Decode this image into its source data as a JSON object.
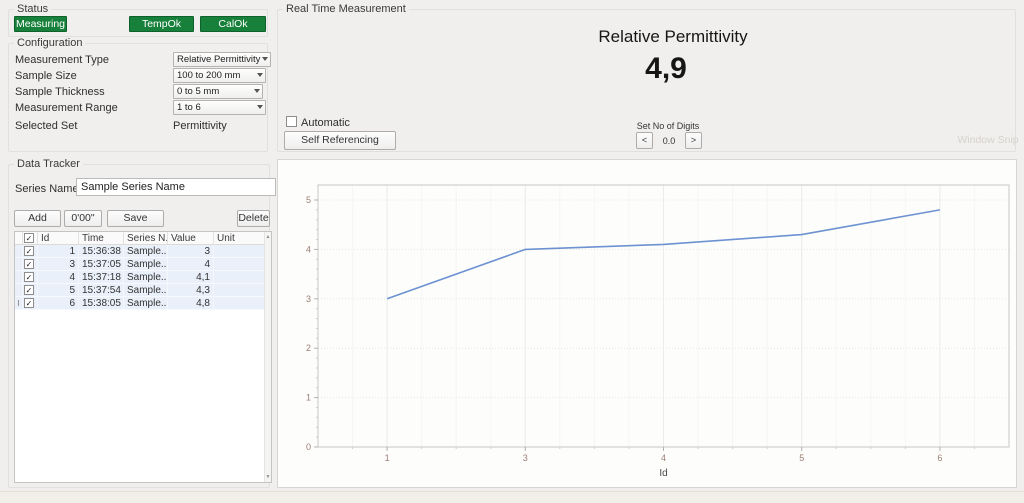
{
  "status": {
    "title": "Status",
    "buttons": [
      {
        "label": "Measuring"
      },
      {
        "label": "TempOk"
      },
      {
        "label": "CalOk"
      }
    ],
    "green": "#17803a"
  },
  "configuration": {
    "title": "Configuration",
    "fields": [
      {
        "label": "Measurement Type",
        "value": "Relative Permittivity",
        "control": "select"
      },
      {
        "label": "Sample Size",
        "value": "100 to 200 mm",
        "control": "select"
      },
      {
        "label": "Sample Thickness",
        "value": "0 to 5 mm",
        "control": "select"
      },
      {
        "label": "Measurement Range",
        "value": "1 to 6",
        "control": "select"
      },
      {
        "label": "Selected Set",
        "value": "Permittivity",
        "control": "text"
      }
    ]
  },
  "realtime": {
    "title": "Real Time Measurement",
    "measurement_name": "Relative Permittivity",
    "value": "4,9",
    "automatic_label": "Automatic",
    "automatic_checked": false,
    "self_referencing_button": "Self Referencing",
    "digits": {
      "label": "Set No of Digits",
      "value": "0.0",
      "decrease": "<",
      "increase": ">"
    },
    "ghost_overlay_text": "Window Snip"
  },
  "data_tracker": {
    "title": "Data Tracker",
    "series_name_label": "Series Name",
    "series_name_value": "Sample Series Name",
    "buttons": {
      "add": "Add",
      "timer": "0'00\"",
      "save": "Save",
      "delete": "Delete"
    },
    "table": {
      "headers": {
        "id": "Id",
        "time": "Time",
        "series": "Series N...",
        "value": "Value",
        "unit": "Unit"
      },
      "rows": [
        {
          "checked": true,
          "id": "1",
          "time": "15:36:38",
          "series": "Sample...",
          "value": "3",
          "unit": ""
        },
        {
          "checked": true,
          "id": "3",
          "time": "15:37:05",
          "series": "Sample...",
          "value": "4",
          "unit": ""
        },
        {
          "checked": true,
          "id": "4",
          "time": "15:37:18",
          "series": "Sample...",
          "value": "4,1",
          "unit": ""
        },
        {
          "checked": true,
          "id": "5",
          "time": "15:37:54",
          "series": "Sample...",
          "value": "4,3",
          "unit": ""
        },
        {
          "checked": true,
          "id": "6",
          "time": "15:38:05",
          "series": "Sample...",
          "value": "4,8",
          "unit": ""
        }
      ]
    }
  },
  "chart_data": {
    "type": "line",
    "x": [
      1,
      3,
      4,
      5,
      6
    ],
    "values": [
      3,
      4,
      4.1,
      4.3,
      4.8
    ],
    "categorical_x": true,
    "title": "",
    "xlabel": "Id",
    "ylabel": "",
    "ylim": [
      0,
      5.3
    ],
    "yticks": [
      0,
      1,
      2,
      3,
      4,
      5
    ],
    "grid": true,
    "legend": false,
    "line_color": "#6d92d1",
    "tick_label_color": "#9a7e74"
  }
}
